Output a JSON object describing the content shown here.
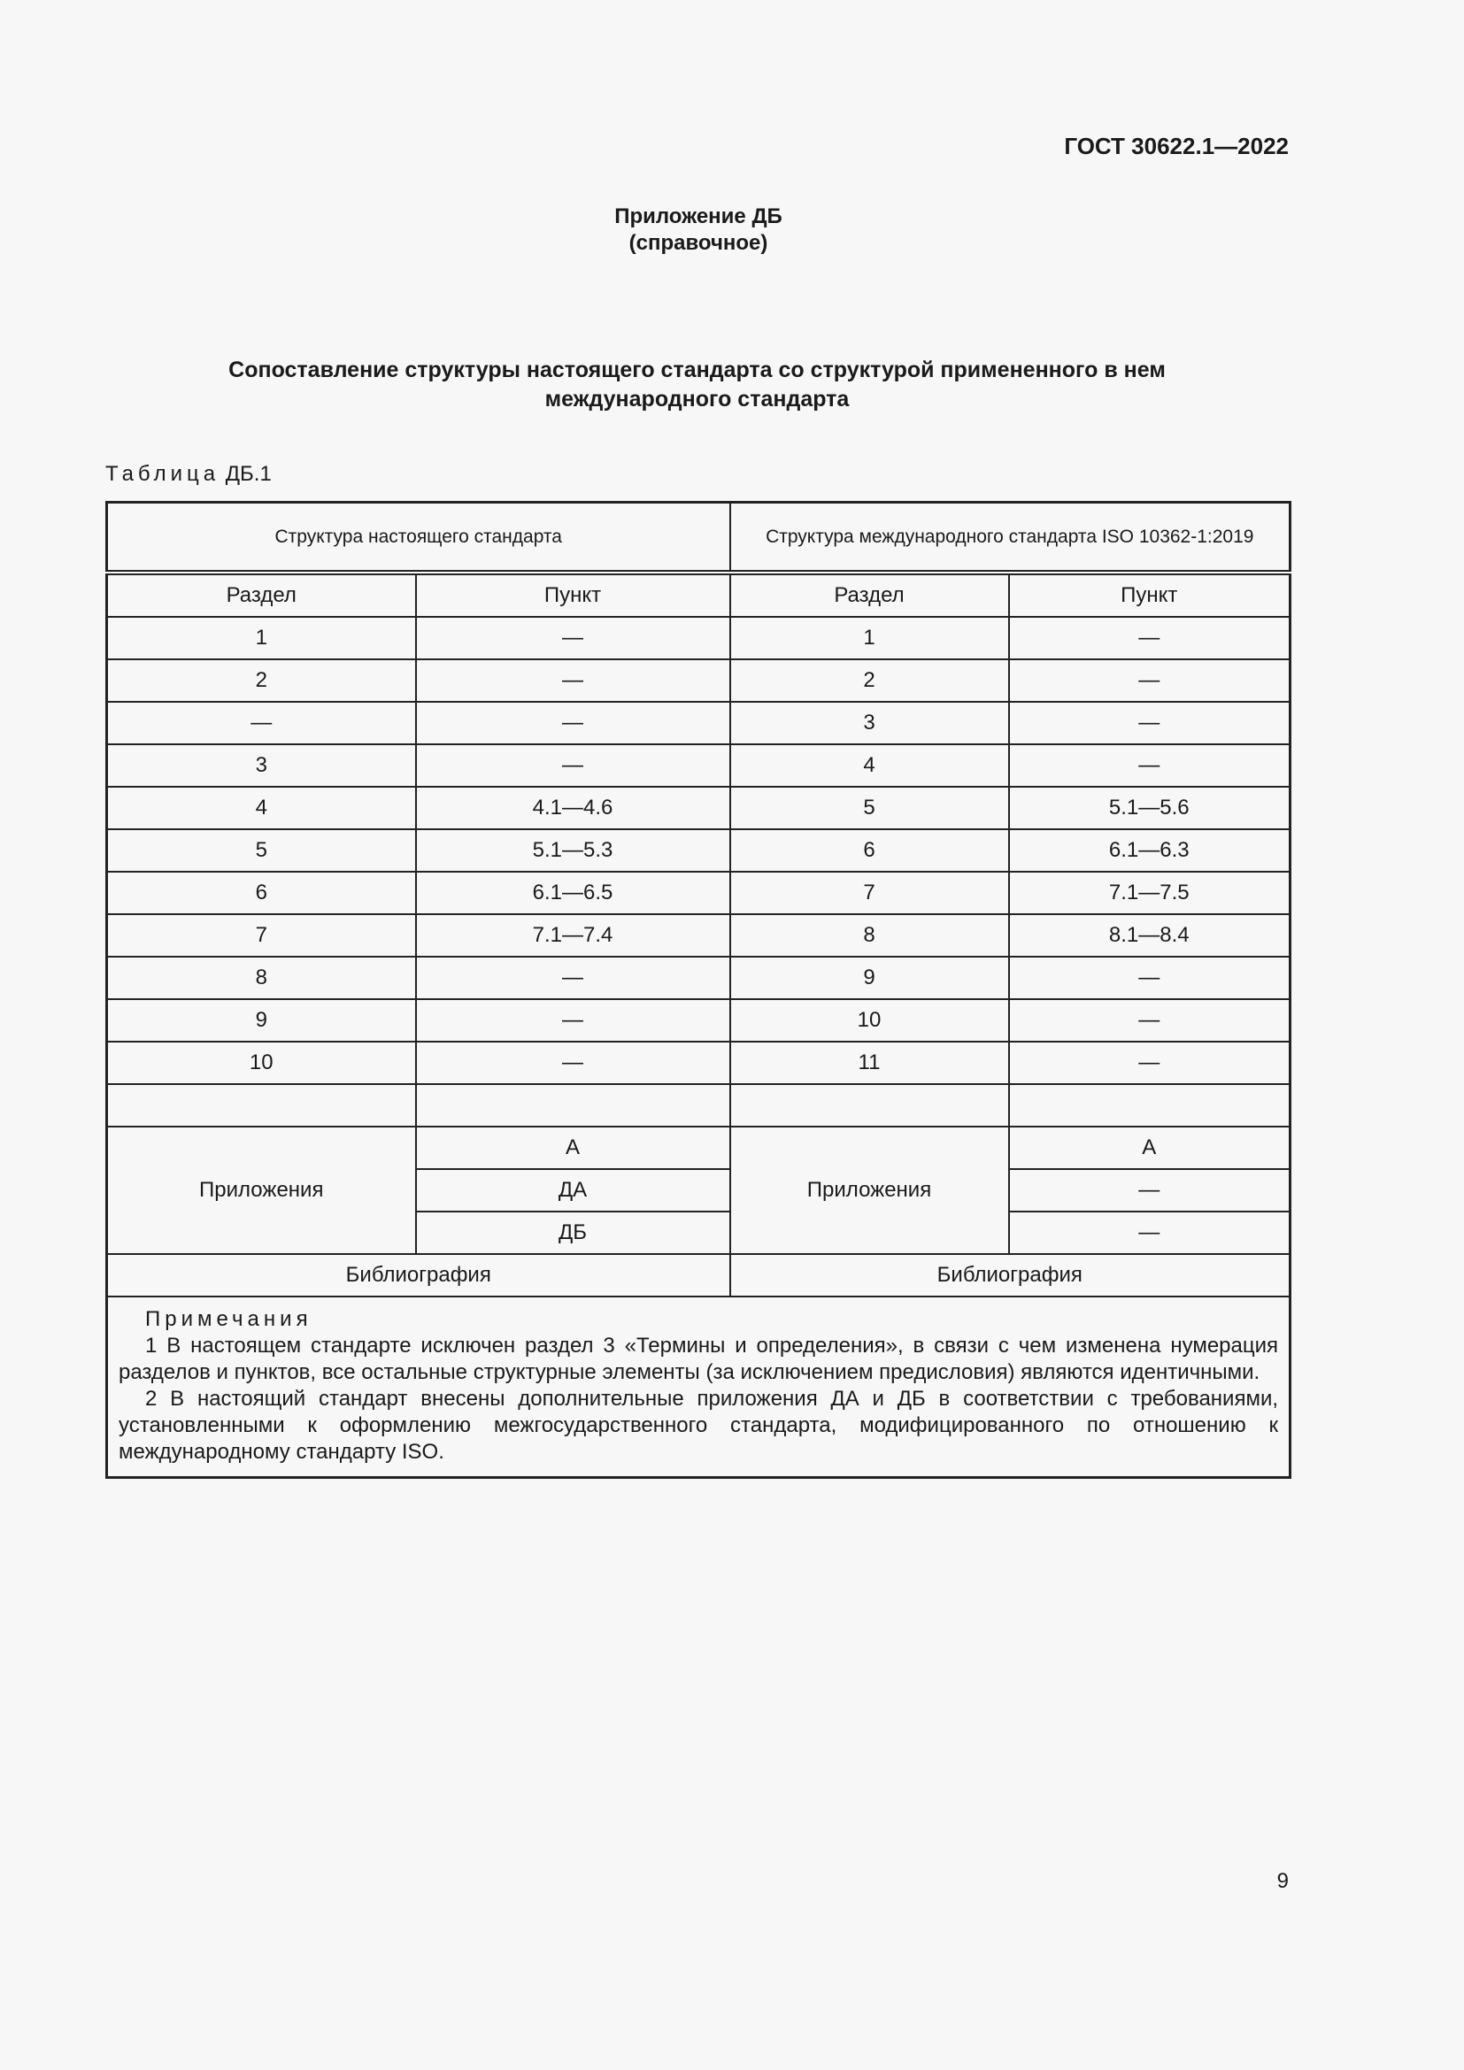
{
  "header": {
    "doc_code": "ГОСТ 30622.1—2022"
  },
  "annex": {
    "title": "Приложение ДБ",
    "kind": "(справочное)"
  },
  "heading": {
    "line1": "Сопоставление структуры настоящего стандарта со структурой примененного в нем",
    "line2": "международного стандарта"
  },
  "table": {
    "caption_word": "Таблица",
    "caption_id": "ДБ.1",
    "group_headers": [
      "Структура настоящего стандарта",
      "Структура международного стандарта ISO 10362-1:2019"
    ],
    "col_headers": [
      "Раздел",
      "Пункт",
      "Раздел",
      "Пункт"
    ],
    "rows": [
      [
        "1",
        "—",
        "1",
        "—"
      ],
      [
        "2",
        "—",
        "2",
        "—"
      ],
      [
        "—",
        "—",
        "3",
        "—"
      ],
      [
        "3",
        "—",
        "4",
        "—"
      ],
      [
        "4",
        "4.1—4.6",
        "5",
        "5.1—5.6"
      ],
      [
        "5",
        "5.1—5.3",
        "6",
        "6.1—6.3"
      ],
      [
        "6",
        "6.1—6.5",
        "7",
        "7.1—7.5"
      ],
      [
        "7",
        "7.1—7.4",
        "8",
        "8.1—8.4"
      ],
      [
        "8",
        "—",
        "9",
        "—"
      ],
      [
        "9",
        "—",
        "10",
        "—"
      ],
      [
        "10",
        "—",
        "11",
        "—"
      ],
      [
        "",
        "",
        "",
        ""
      ]
    ],
    "appendices": {
      "label_left": "Приложения",
      "left": [
        "А",
        "ДА",
        "ДБ"
      ],
      "label_right": "Приложения",
      "right": [
        "А",
        "—",
        "—"
      ]
    },
    "bibliography": [
      "Библиография",
      "Библиография"
    ],
    "notes": {
      "title": "Примечания",
      "items": [
        "1 В настоящем стандарте исключен раздел 3 «Термины и определения», в связи с чем изменена нумерация разделов и пунктов, все остальные структурные элементы (за исключением предисловия) являются идентичными.",
        "2 В настоящий стандарт внесены дополнительные приложения ДА и ДБ в соответствии с требованиями, установленными к оформлению межгосударственного стандарта, модифицированного по отношению к международному стандарту ISO."
      ]
    }
  },
  "footer": {
    "page_number": "9"
  }
}
